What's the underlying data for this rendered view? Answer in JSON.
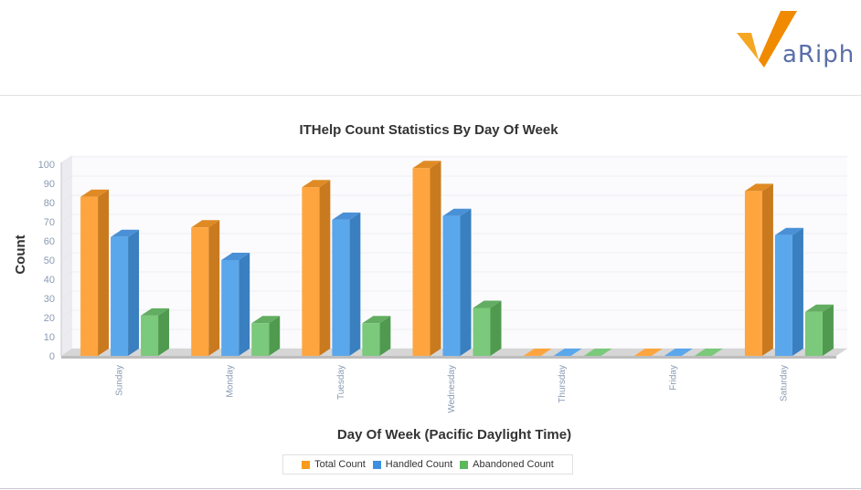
{
  "logo": {
    "text": "aRiphy",
    "mark": "V"
  },
  "colors": {
    "total": "#ffa53f",
    "total_side": "#c97a1f",
    "total_top": "#e08a24",
    "handled": "#5aa7ec",
    "handled_side": "#3a7fbf",
    "handled_top": "#4a90d6",
    "abandoned": "#7bc97b",
    "abandoned_side": "#4f9a4f",
    "abandoned_top": "#62ad62"
  },
  "chart_data": {
    "type": "bar",
    "title": "ITHelp Count Statistics By Day Of Week",
    "xlabel": "Day Of Week (Pacific Daylight Time)",
    "ylabel": "Count",
    "ylim": [
      0,
      100
    ],
    "yticks": [
      0,
      10,
      20,
      30,
      40,
      50,
      60,
      70,
      80,
      90,
      100
    ],
    "categories": [
      "Sunday",
      "Monday",
      "Tuesday",
      "Wednesday",
      "Thursday",
      "Friday",
      "Saturday"
    ],
    "series": [
      {
        "name": "Total Count",
        "values": [
          83,
          67,
          88,
          98,
          0,
          0,
          86
        ]
      },
      {
        "name": "Handled Count",
        "values": [
          62,
          50,
          71,
          73,
          0,
          0,
          63
        ]
      },
      {
        "name": "Abandoned Count",
        "values": [
          21,
          17,
          17,
          25,
          0,
          0,
          23
        ]
      }
    ],
    "legend": "bottom-center",
    "grid": true,
    "style": "3d"
  }
}
